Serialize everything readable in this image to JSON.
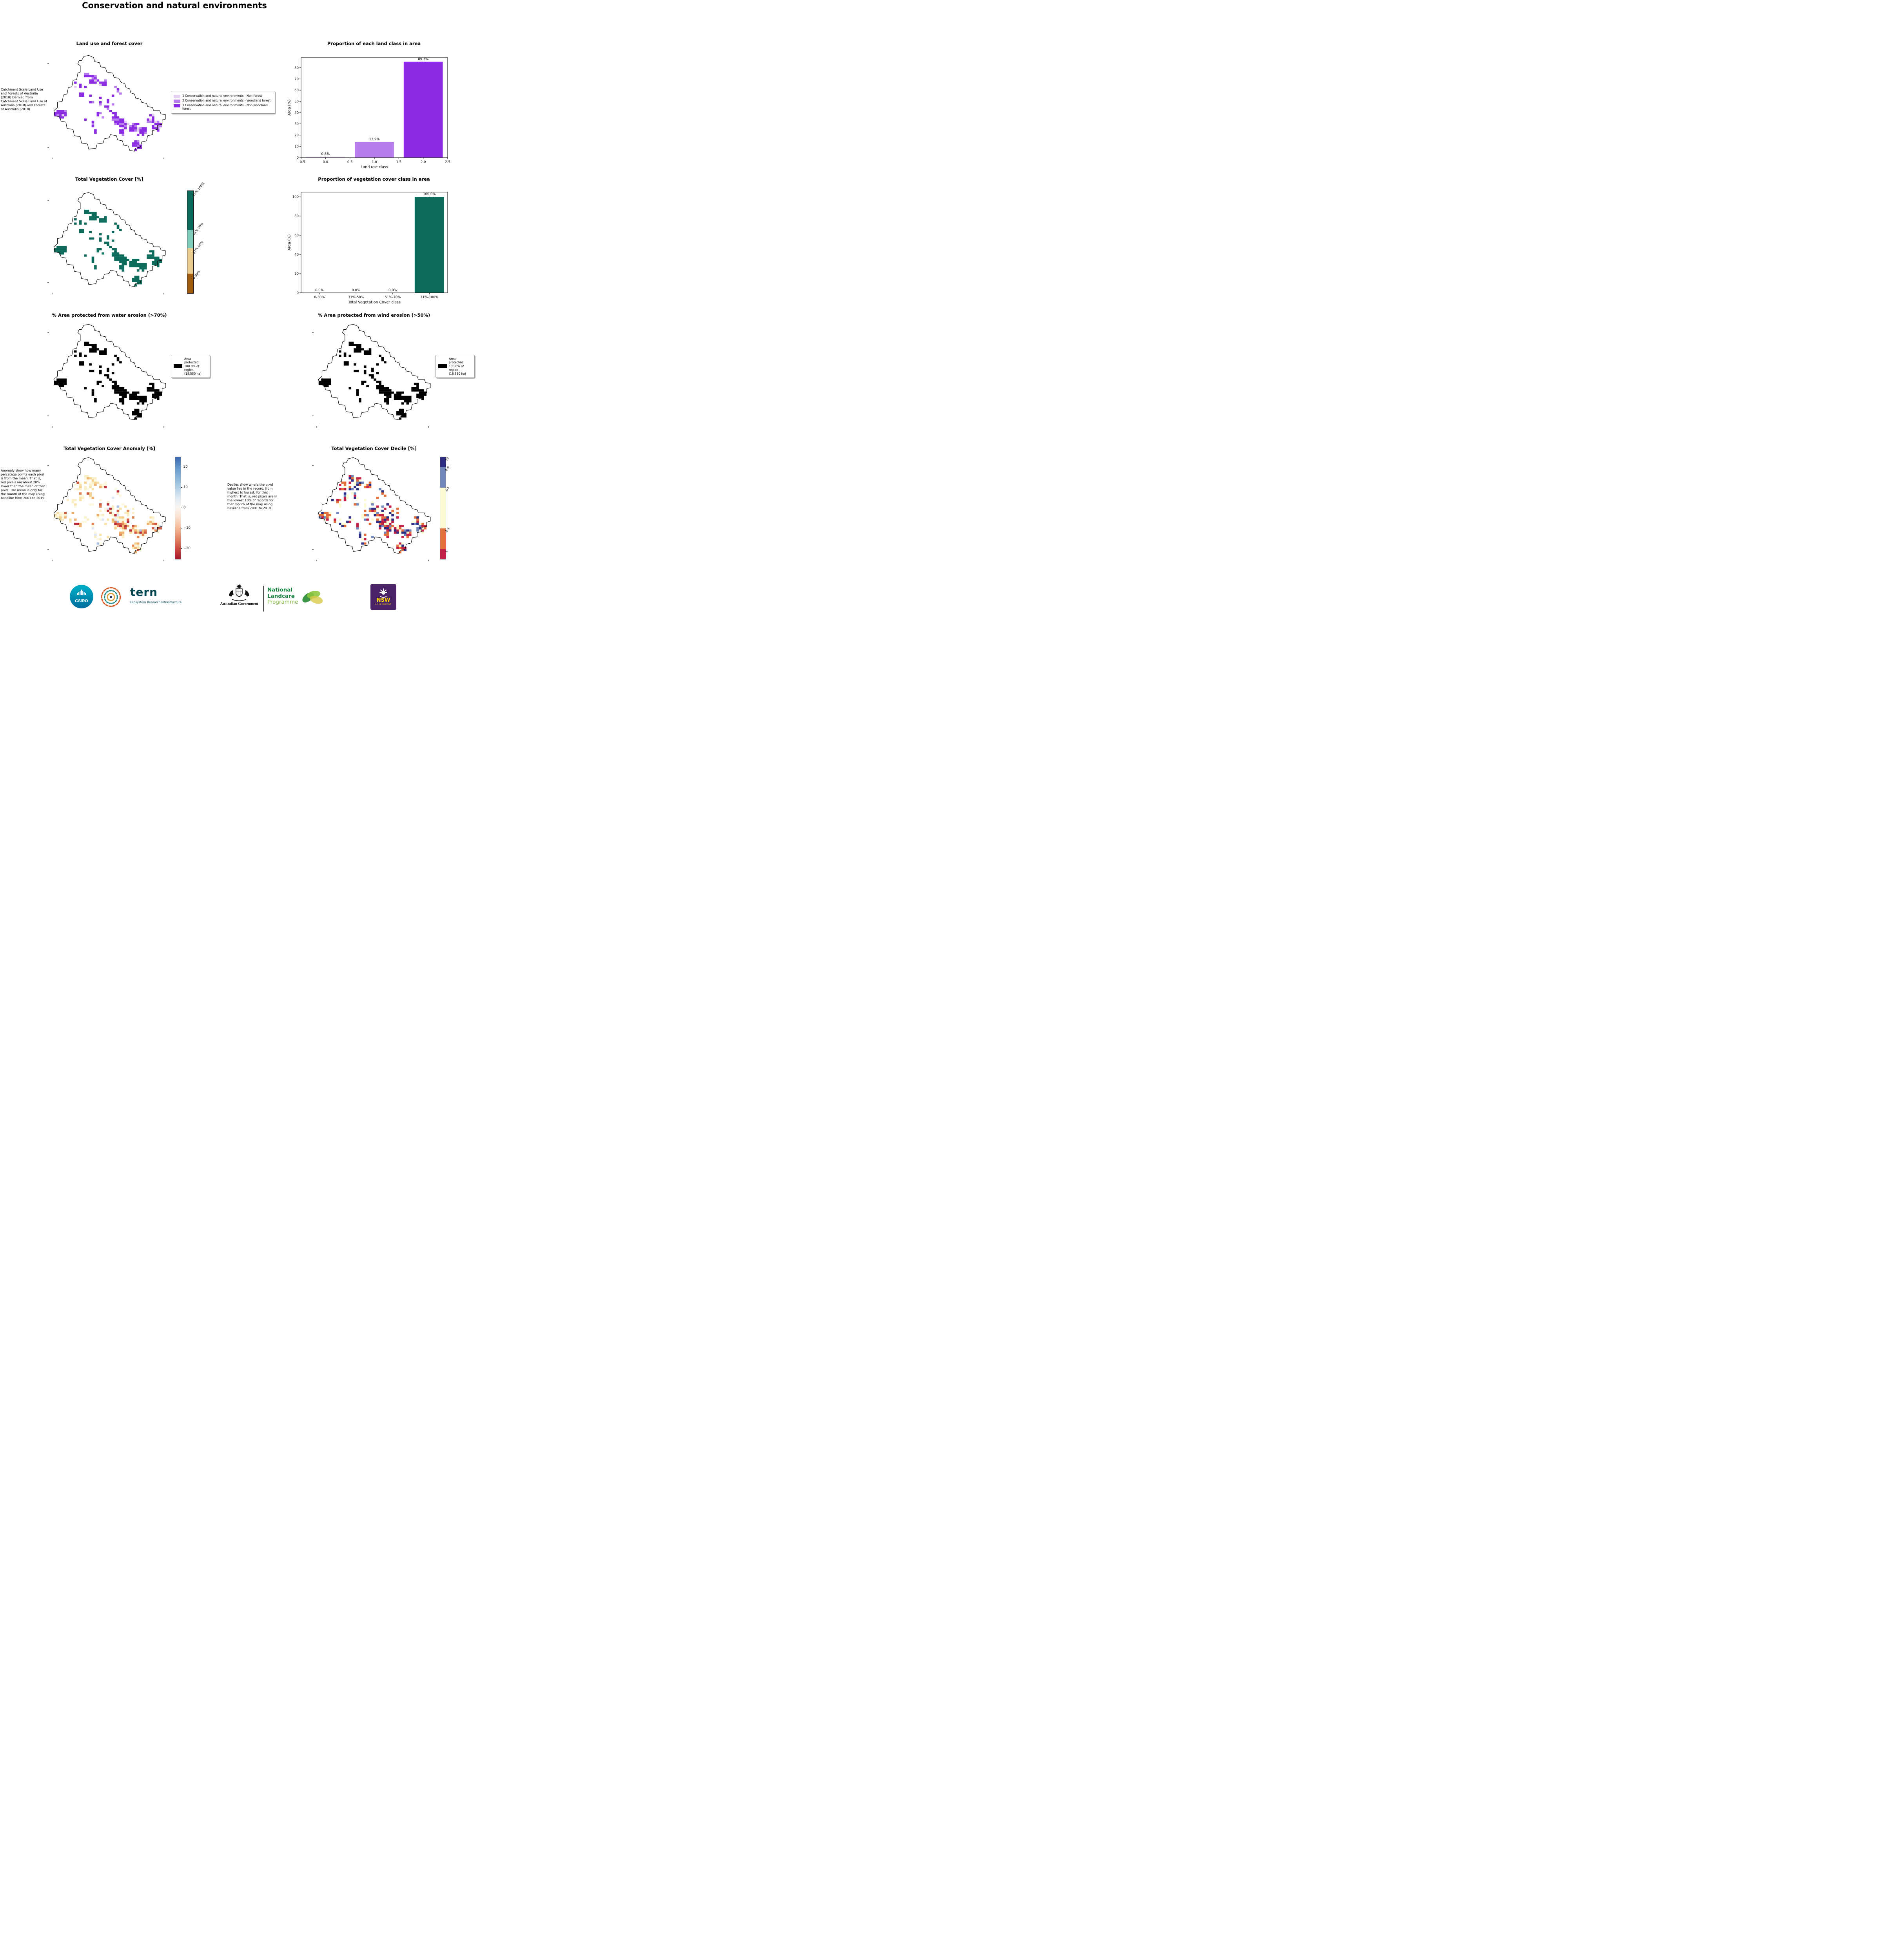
{
  "page": {
    "title": "Conservation and natural environments"
  },
  "panels": {
    "land_use_map": {
      "title": "Land use and forest cover",
      "side_note": "Catchment Scale Land Use and Forests of Australia (2018) Derived from Catchment Scale Land Use of Australia (2018) and Forests of Australia (2018)",
      "legend": [
        {
          "label": "1 Conservation and natural environments - Non-forest",
          "color": "#e4d1f4"
        },
        {
          "label": "2 Conservation and natural environments - Woodland forest",
          "color": "#b77ded"
        },
        {
          "label": "3 Conservation and natural environments - Non-woodland forest",
          "color": "#8b2be2"
        }
      ]
    },
    "veg_cover_map": {
      "title": "Total Vegetation Cover [%]",
      "colorbar": [
        {
          "label": "71%-100%",
          "color": "#0d6b5b",
          "span": 38
        },
        {
          "label": "51%-70%",
          "color": "#7fccbb",
          "span": 18
        },
        {
          "label": "31%-50%",
          "color": "#eccd90",
          "span": 25
        },
        {
          "label": "0-30%",
          "color": "#a05c10",
          "span": 19
        }
      ]
    },
    "water_erosion_map": {
      "title": "% Area protected from water erosion (>70%)",
      "legend_label": "Area protected 100.0% of region (18,550 ha)",
      "legend_color": "#000000"
    },
    "wind_erosion_map": {
      "title": "% Area protected from wind erosion (>50%)",
      "legend_label": "Area protected 100.0% of region (18,550 ha)",
      "legend_color": "#000000"
    },
    "anomaly_map": {
      "title": "Total Vegetation Cover Anomaly [%]",
      "note": "Anomaly show how many percetage points each pixel is from the mean. That is, red pixels are about 20% lower than the mean of that pixel. The mean is only for the month of the map using baseline from 2001 to 2019.",
      "colorbar_ticks": [
        "20",
        "10",
        "0",
        "−10",
        "−20"
      ]
    },
    "decile_map": {
      "title": "Total Vegetation Cover Decile [%]",
      "note": "Deciles show where the pixel value lies in the record, from highest to lowest, for that month. That is, red pixels are in the lowest 10% of records for that month of the map using baseline from 2001 to 2019.",
      "colorbar": [
        {
          "label": "10",
          "color": "#2d2e83",
          "span": 10
        },
        {
          "label": "8-9",
          "color": "#7086bb",
          "span": 20
        },
        {
          "label": "4-7",
          "color": "#fbfcd4",
          "span": 40
        },
        {
          "label": "2-3",
          "color": "#e2713d",
          "span": 20
        },
        {
          "label": "1",
          "color": "#c32148",
          "span": 10
        }
      ]
    }
  },
  "chart_data": [
    {
      "type": "bar",
      "title": "Proportion of each land class in area",
      "xlabel": "Land use class",
      "ylabel": "Area (%)",
      "x": [
        0.0,
        1.0,
        2.0
      ],
      "values": [
        0.8,
        13.9,
        85.3
      ],
      "bar_labels": [
        "0.8%",
        "13.9%",
        "85.3%"
      ],
      "bar_colors": [
        "#e4d1f4",
        "#b77ded",
        "#8b2be2"
      ],
      "xlim": [
        -0.5,
        2.5
      ],
      "ylim": [
        0,
        89
      ],
      "xtick_vals": [
        -0.5,
        0,
        0.5,
        1,
        1.5,
        2,
        2.5
      ],
      "xtick_labels": [
        "−0.5",
        "0.0",
        "0.5",
        "1.0",
        "1.5",
        "2.0",
        "2.5"
      ],
      "ytick_vals": [
        0,
        10,
        20,
        30,
        40,
        50,
        60,
        70,
        80
      ],
      "ytick_labels": [
        "0",
        "10",
        "20",
        "30",
        "40",
        "50",
        "60",
        "70",
        "80"
      ],
      "legend_position": "none",
      "grid": false
    },
    {
      "type": "bar",
      "title": "Proportion of vegetation cover class in area",
      "xlabel": "Total Vegetation Cover class",
      "ylabel": "Area (%)",
      "categories": [
        "0-30%",
        "31%-50%",
        "51%-70%",
        "71%-100%"
      ],
      "values": [
        0.0,
        0.0,
        0.0,
        100.0
      ],
      "bar_labels": [
        "0.0%",
        "0.0%",
        "0.0%",
        "100.0%"
      ],
      "bar_color": "#0d6b5b",
      "xlim": [
        -0.5,
        3.5
      ],
      "ylim": [
        0,
        105
      ],
      "ytick_vals": [
        0,
        20,
        40,
        60,
        80,
        100
      ],
      "ytick_labels": [
        "0",
        "20",
        "40",
        "60",
        "80",
        "100"
      ],
      "legend_position": "none",
      "grid": false
    }
  ],
  "footer": {
    "csiro_label": "CSIRO",
    "tern_label": "tern",
    "tern_sub": "Ecosystem Research Infrastructure",
    "aus_gov_label": "Australian Government",
    "landcare_line1": "National",
    "landcare_line2": "Landcare",
    "landcare_line3": "Programme",
    "nsw_label": "NSW",
    "nsw_sub": "GOVERNMENT"
  }
}
